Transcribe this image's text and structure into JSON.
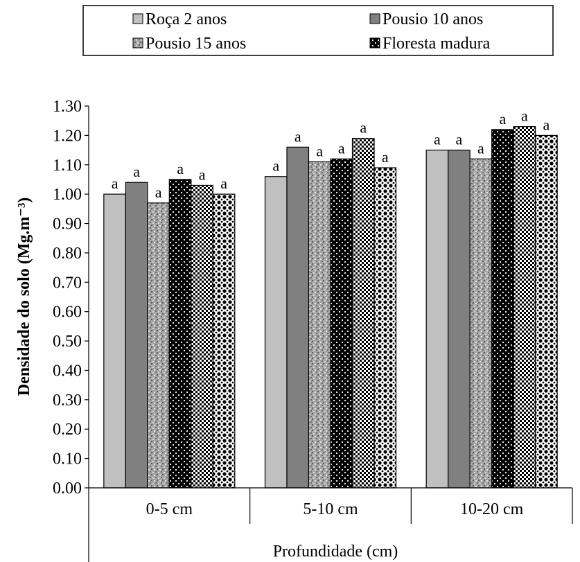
{
  "chart_data": {
    "type": "bar",
    "categories": [
      "0-5 cm",
      "5-10 cm",
      "10-20 cm"
    ],
    "series": [
      {
        "name": "Roça 2 anos",
        "values": [
          1.0,
          1.06,
          1.15
        ],
        "labels": [
          "a",
          "a",
          "a"
        ]
      },
      {
        "name": "Pousio 10 anos",
        "values": [
          1.04,
          1.16,
          1.15
        ],
        "labels": [
          "a",
          "a",
          "a"
        ]
      },
      {
        "name": "Pousio 15 anos",
        "values": [
          0.97,
          1.11,
          1.12
        ],
        "labels": [
          "a",
          "a",
          "a"
        ]
      },
      {
        "name": "Floresta madura",
        "values": [
          1.05,
          1.12,
          1.22
        ],
        "labels": [
          "a",
          "a",
          "a"
        ]
      },
      {
        "name": "",
        "values": [
          1.03,
          1.19,
          1.23
        ],
        "labels": [
          "a",
          "a",
          "a"
        ]
      },
      {
        "name": "",
        "values": [
          1.0,
          1.09,
          1.2
        ],
        "labels": [
          "a",
          "a",
          "a"
        ]
      }
    ],
    "xlabel": "Profundidade (cm)",
    "ylabel": "Densidade do solo (Mg.m⁻³)",
    "ylim": [
      0,
      1.3
    ],
    "yticks": [
      "0.00",
      "0.10",
      "0.20",
      "0.30",
      "0.40",
      "0.50",
      "0.60",
      "0.70",
      "0.80",
      "0.90",
      "1.00",
      "1.10",
      "1.20",
      "1.30"
    ],
    "grid": false,
    "legend_position": "top",
    "colors": {
      "series_1": "#c0c0c0",
      "series_2": "#808080",
      "series_3": "#9a9a9a",
      "series_4": "#000000",
      "series_5": "#ffffff",
      "series_6": "#ffffff"
    }
  }
}
